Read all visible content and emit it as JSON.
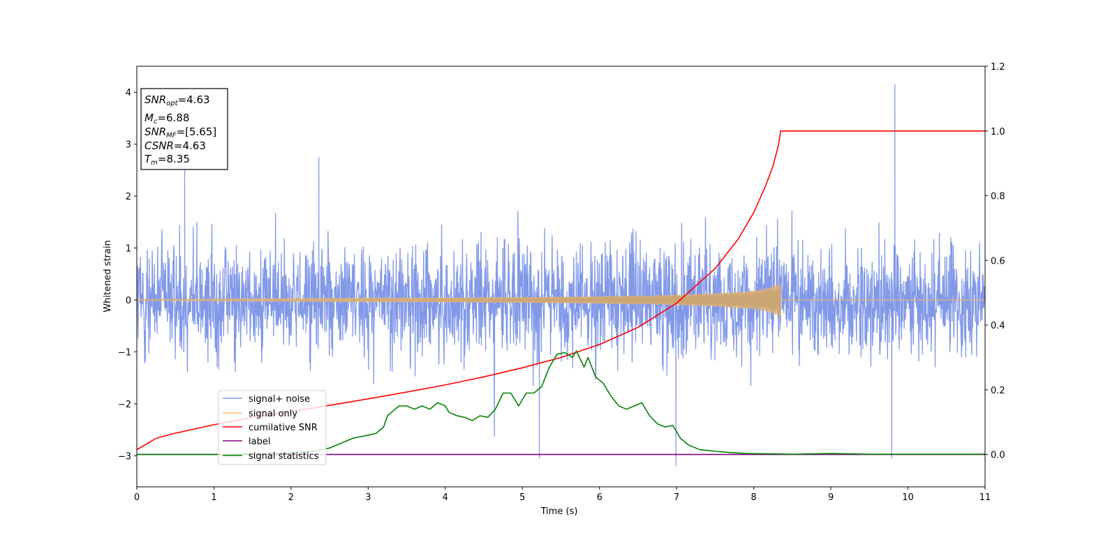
{
  "chart_data": {
    "type": "line",
    "xlabel": "Time (s)",
    "ylabel": "Whitened strain",
    "xlim": [
      0,
      11
    ],
    "ylim": [
      -3.6,
      4.5
    ],
    "y2lim": [
      -0.1,
      1.2
    ],
    "x_ticks": [
      "0",
      "1",
      "2",
      "3",
      "4",
      "5",
      "6",
      "7",
      "8",
      "9",
      "10",
      "11"
    ],
    "y_ticks": [
      -3,
      -2,
      -1,
      0,
      1,
      2,
      3,
      4
    ],
    "y_tick_labels": [
      "−3",
      "−2",
      "−1",
      "0",
      "1",
      "2",
      "3",
      "4"
    ],
    "y2_ticks": [
      "0.0",
      "0.2",
      "0.4",
      "0.6",
      "0.8",
      "1.0",
      "1.2"
    ],
    "grid": false,
    "legend_position": "lower-left",
    "annotation": {
      "snr_opt": {
        "symbol": "SNR",
        "sub": "opt",
        "text": "=4.63"
      },
      "mc": {
        "symbol": "M",
        "sub": "c",
        "text": "=6.88"
      },
      "snr_mf": {
        "symbol": "SNR",
        "sub": "MF",
        "text": "=[5.65]"
      },
      "csnr": {
        "symbol": "CSNR",
        "sub": "",
        "text": "=4.63"
      },
      "tm": {
        "symbol": "T",
        "sub": "m",
        "text": "=8.35"
      }
    },
    "series": [
      {
        "name": "signal+ noise",
        "color": "#7b93e8",
        "axis": "left",
        "description": "dense noise between about -2.5 and +2.5; spikes to 4.15 at t=9.83, -3.05 at t=5.22, -3.2 at t=6.99, -3.05 at t=9.79"
      },
      {
        "name": "signal only",
        "color": "#f5c27a",
        "axis": "left",
        "chirp_end": 8.35,
        "envelope": [
          [
            0,
            0.02
          ],
          [
            3,
            0.03
          ],
          [
            5,
            0.05
          ],
          [
            6,
            0.07
          ],
          [
            7,
            0.1
          ],
          [
            7.5,
            0.13
          ],
          [
            8,
            0.18
          ],
          [
            8.2,
            0.24
          ],
          [
            8.35,
            0.33
          ]
        ]
      },
      {
        "name": "cumilative SNR",
        "color": "#ff0000",
        "axis": "right",
        "x": [
          0,
          0.25,
          0.5,
          1,
          1.5,
          2,
          2.5,
          3,
          3.5,
          4,
          4.5,
          5,
          5.5,
          6,
          6.5,
          7,
          7.5,
          7.8,
          8,
          8.15,
          8.25,
          8.32,
          8.35,
          11
        ],
        "y": [
          0.015,
          0.05,
          0.066,
          0.092,
          0.114,
          0.133,
          0.152,
          0.172,
          0.193,
          0.215,
          0.24,
          0.268,
          0.3,
          0.34,
          0.393,
          0.468,
          0.575,
          0.666,
          0.748,
          0.828,
          0.892,
          0.956,
          1.0,
          1.0
        ]
      },
      {
        "name": "label",
        "color": "#800080",
        "axis": "right",
        "x": [
          0,
          11
        ],
        "y": [
          0,
          0
        ]
      },
      {
        "name": "signal statistics",
        "color": "#008000",
        "axis": "right",
        "x": [
          0,
          0.5,
          1,
          1.5,
          2,
          2.3,
          2.5,
          2.7,
          2.8,
          2.9,
          3.0,
          3.1,
          3.2,
          3.25,
          3.3,
          3.4,
          3.5,
          3.6,
          3.7,
          3.8,
          3.9,
          4.0,
          4.05,
          4.15,
          4.25,
          4.35,
          4.45,
          4.55,
          4.65,
          4.75,
          4.85,
          4.95,
          5.05,
          5.15,
          5.25,
          5.35,
          5.45,
          5.55,
          5.65,
          5.7,
          5.8,
          5.85,
          5.95,
          6.05,
          6.15,
          6.25,
          6.35,
          6.45,
          6.55,
          6.65,
          6.75,
          6.85,
          6.95,
          7.05,
          7.15,
          7.3,
          7.5,
          7.7,
          7.9,
          8.2,
          8.5,
          9.0,
          9.5,
          10,
          11
        ],
        "y": [
          0.0,
          0.0,
          0.0,
          0.002,
          0.005,
          0.01,
          0.02,
          0.04,
          0.05,
          0.055,
          0.06,
          0.065,
          0.085,
          0.12,
          0.13,
          0.15,
          0.15,
          0.14,
          0.15,
          0.14,
          0.16,
          0.15,
          0.13,
          0.12,
          0.115,
          0.105,
          0.12,
          0.115,
          0.14,
          0.19,
          0.19,
          0.15,
          0.19,
          0.19,
          0.21,
          0.27,
          0.31,
          0.315,
          0.3,
          0.32,
          0.27,
          0.3,
          0.24,
          0.22,
          0.18,
          0.15,
          0.14,
          0.15,
          0.16,
          0.12,
          0.095,
          0.085,
          0.09,
          0.05,
          0.03,
          0.015,
          0.01,
          0.006,
          0.003,
          0.002,
          0.001,
          0.003,
          0.001,
          0.001,
          0.001
        ]
      }
    ]
  }
}
